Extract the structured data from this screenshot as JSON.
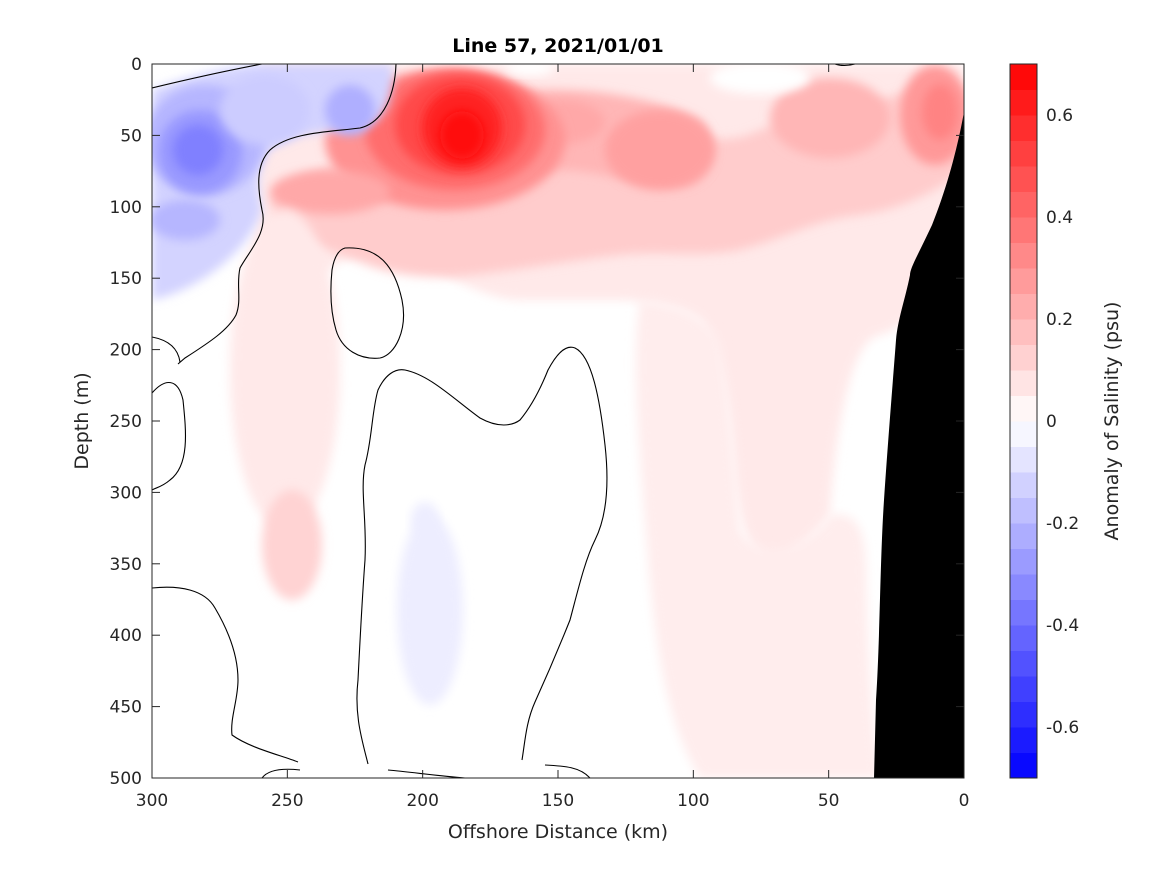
{
  "chart_data": {
    "type": "heatmap",
    "title": "Line 57, 2021/01/01",
    "xlabel": "Offshore Distance (km)",
    "ylabel": "Depth (m)",
    "xlim": [
      300,
      0
    ],
    "ylim": [
      0,
      500
    ],
    "x_ticks": [
      300,
      250,
      200,
      150,
      100,
      50,
      0
    ],
    "y_ticks": [
      0,
      50,
      100,
      150,
      200,
      250,
      300,
      350,
      400,
      450,
      500
    ],
    "x_tick_labels": [
      "300",
      "250",
      "200",
      "150",
      "100",
      "50",
      "0"
    ],
    "y_tick_labels": [
      "0",
      "50",
      "100",
      "150",
      "200",
      "250",
      "300",
      "350",
      "400",
      "450",
      "500"
    ],
    "colorbar": {
      "label": "Anomaly of Salinity (psu)",
      "range": [
        -0.7,
        0.7
      ],
      "step": 0.05,
      "ticks": [
        0.6,
        0.4,
        0.2,
        0,
        -0.2,
        -0.4,
        -0.6
      ],
      "tick_labels": [
        "0.6",
        "0.4",
        "0.2",
        "0",
        "-0.2",
        "-0.4",
        "-0.6"
      ]
    },
    "features": [
      {
        "name": "salinity-maximum",
        "x_km": 187,
        "depth_m": 50,
        "value": 0.65
      },
      {
        "name": "salinity-minimum",
        "x_km": 285,
        "depth_m": 60,
        "value": -0.35
      },
      {
        "name": "nearshore-maximum",
        "x_km": 10,
        "depth_m": 40,
        "value": 0.3
      },
      {
        "name": "deep-minimum",
        "x_km": 198,
        "depth_m": 390,
        "value": -0.05
      }
    ],
    "zero_contour": "black line marks 0 psu",
    "topography": "continental slope, black mask from 0 to 33 km"
  },
  "colors": {
    "positive_max": "#ff0000",
    "negative_max": "#0000ff",
    "zero": "#ffffff",
    "topography": "#000000"
  }
}
